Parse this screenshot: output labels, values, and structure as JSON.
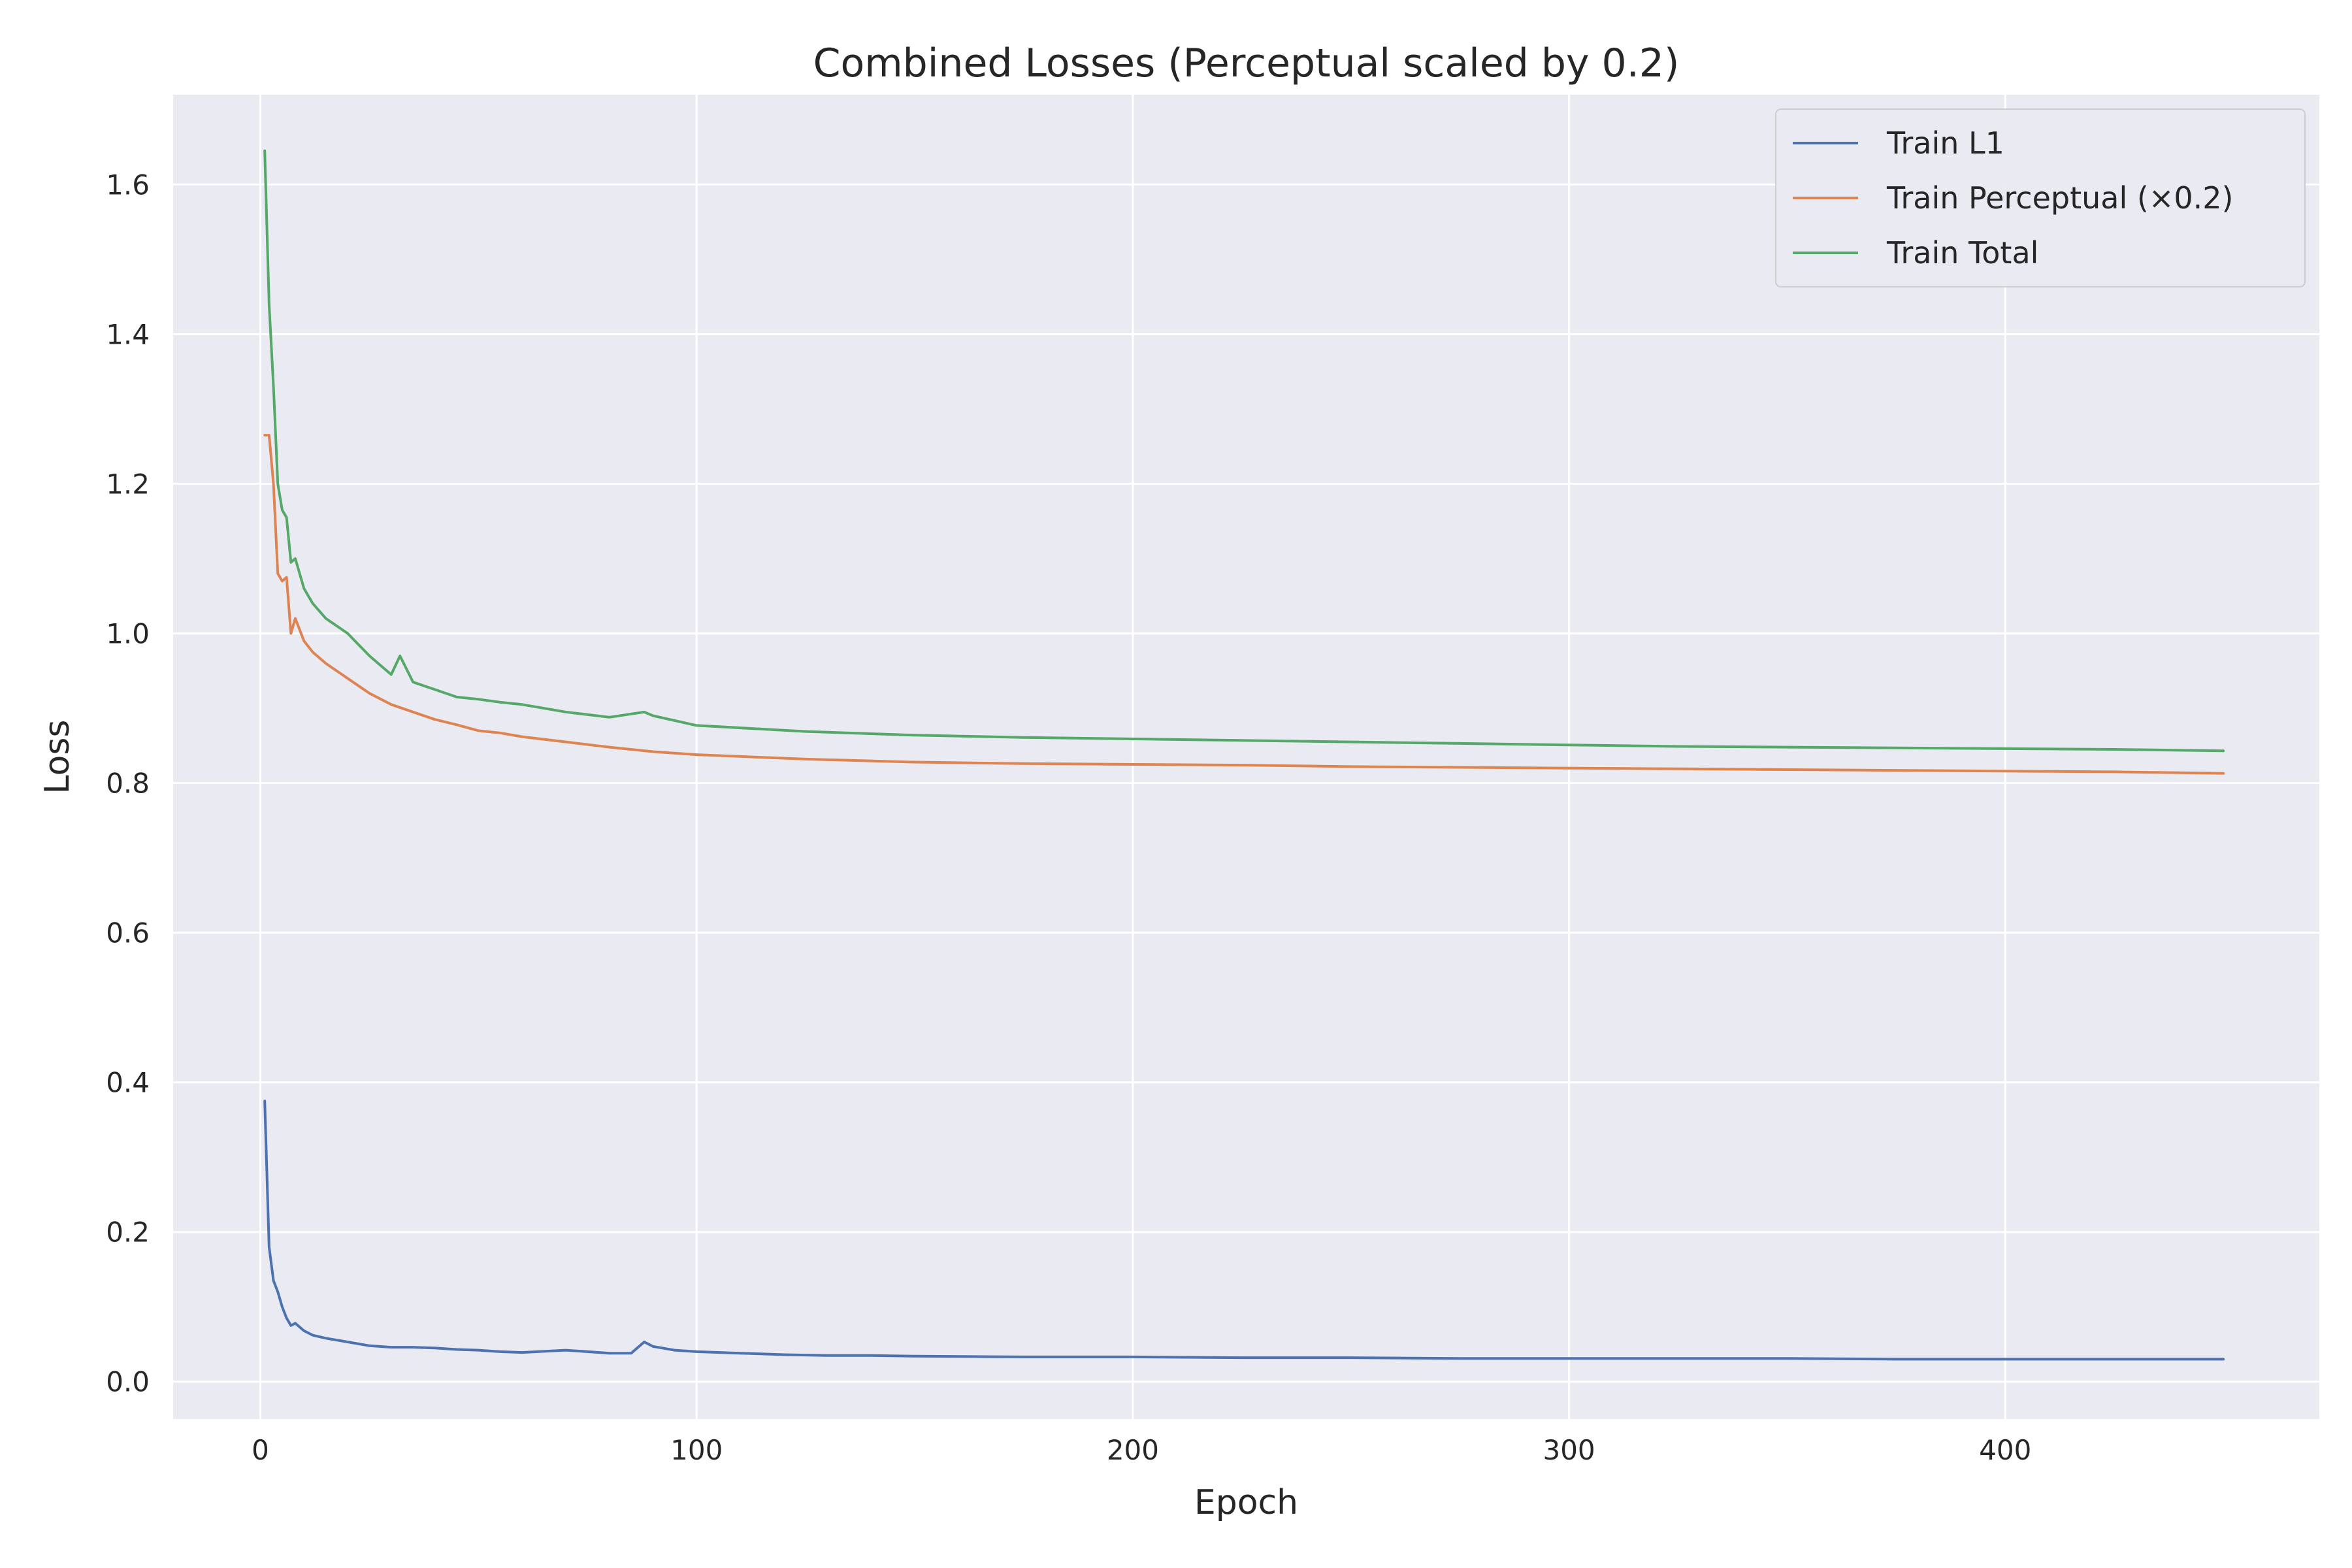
{
  "chart_data": {
    "type": "line",
    "title": "Combined Losses (Perceptual scaled by 0.2)",
    "xlabel": "Epoch",
    "ylabel": "Loss",
    "xlim": [
      -20,
      472
    ],
    "ylim": [
      -0.05,
      1.72
    ],
    "xticks": [
      0,
      100,
      200,
      300,
      400
    ],
    "yticks": [
      0.0,
      0.2,
      0.4,
      0.6,
      0.8,
      1.0,
      1.2,
      1.4,
      1.6
    ],
    "grid": true,
    "legend_position": "top-right",
    "background_color": "#eaeaf2",
    "series": [
      {
        "name": "Train L1",
        "color": "#4c72b0",
        "x": [
          1,
          2,
          3,
          4,
          5,
          6,
          7,
          8,
          10,
          12,
          15,
          20,
          25,
          30,
          35,
          40,
          45,
          50,
          55,
          60,
          70,
          80,
          85,
          88,
          90,
          95,
          100,
          110,
          120,
          130,
          140,
          150,
          175,
          200,
          225,
          250,
          275,
          300,
          325,
          350,
          375,
          400,
          425,
          450
        ],
        "y": [
          0.375,
          0.18,
          0.135,
          0.12,
          0.1,
          0.085,
          0.075,
          0.078,
          0.068,
          0.062,
          0.058,
          0.053,
          0.048,
          0.046,
          0.046,
          0.045,
          0.043,
          0.042,
          0.04,
          0.039,
          0.042,
          0.038,
          0.038,
          0.053,
          0.047,
          0.042,
          0.04,
          0.038,
          0.036,
          0.035,
          0.035,
          0.034,
          0.033,
          0.033,
          0.032,
          0.032,
          0.031,
          0.031,
          0.031,
          0.031,
          0.03,
          0.03,
          0.03,
          0.03
        ]
      },
      {
        "name": "Train Perceptual (×0.2)",
        "color": "#dd8452",
        "x": [
          1,
          2,
          3,
          4,
          5,
          6,
          7,
          8,
          10,
          12,
          15,
          20,
          25,
          30,
          35,
          40,
          45,
          50,
          55,
          60,
          70,
          80,
          90,
          100,
          125,
          150,
          175,
          200,
          225,
          250,
          275,
          300,
          325,
          350,
          375,
          400,
          425,
          450
        ],
        "y": [
          1.265,
          1.265,
          1.2,
          1.08,
          1.07,
          1.075,
          1.0,
          1.02,
          0.99,
          0.975,
          0.96,
          0.94,
          0.92,
          0.905,
          0.895,
          0.885,
          0.878,
          0.87,
          0.867,
          0.862,
          0.855,
          0.848,
          0.842,
          0.838,
          0.832,
          0.828,
          0.826,
          0.825,
          0.824,
          0.822,
          0.821,
          0.82,
          0.819,
          0.818,
          0.817,
          0.816,
          0.815,
          0.813
        ]
      },
      {
        "name": "Train Total",
        "color": "#55a868",
        "x": [
          1,
          2,
          3,
          4,
          5,
          6,
          7,
          8,
          10,
          12,
          15,
          20,
          25,
          30,
          32,
          35,
          40,
          45,
          50,
          55,
          60,
          70,
          80,
          88,
          90,
          100,
          125,
          150,
          175,
          200,
          225,
          250,
          275,
          300,
          325,
          350,
          375,
          400,
          425,
          450
        ],
        "y": [
          1.645,
          1.44,
          1.33,
          1.2,
          1.165,
          1.155,
          1.095,
          1.1,
          1.06,
          1.04,
          1.02,
          1.0,
          0.97,
          0.945,
          0.97,
          0.935,
          0.925,
          0.915,
          0.912,
          0.908,
          0.905,
          0.895,
          0.888,
          0.895,
          0.89,
          0.877,
          0.869,
          0.864,
          0.861,
          0.859,
          0.857,
          0.855,
          0.853,
          0.851,
          0.849,
          0.848,
          0.847,
          0.846,
          0.845,
          0.843
        ]
      }
    ]
  }
}
